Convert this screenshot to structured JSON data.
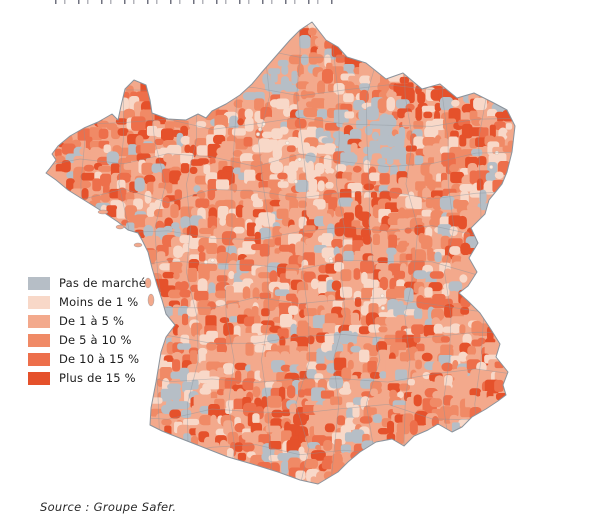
{
  "figure": {
    "source_caption": "Source : Groupe Safer.",
    "background": "#ffffff"
  },
  "legend": {
    "items": [
      {
        "label": "Pas de marché",
        "color": "#b6bec6"
      },
      {
        "label": "Moins de 1 %",
        "color": "#f8d8c8"
      },
      {
        "label": "De 1 à 5 %",
        "color": "#f3a98c"
      },
      {
        "label": "De 5 à 10 %",
        "color": "#f08a66"
      },
      {
        "label": "De 10 à 15 %",
        "color": "#ed6f4b"
      },
      {
        "label": "Plus de 15 %",
        "color": "#e5512b"
      }
    ]
  },
  "map": {
    "depicted_region": "France métropolitaine (choroplèthe par petites régions)",
    "border_color": "#8b939c",
    "base_color": "#f3a98c"
  }
}
